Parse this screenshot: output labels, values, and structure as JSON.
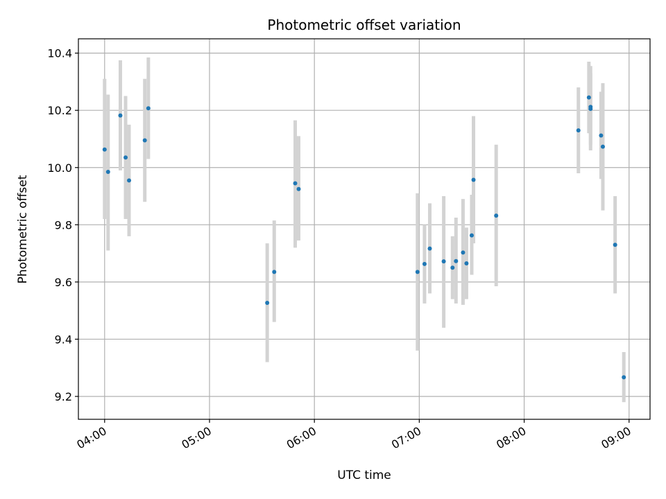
{
  "chart_data": {
    "type": "scatter",
    "title": "Photometric offset variation",
    "xlabel": "UTC time",
    "ylabel": "Photometric offset",
    "x_unit": "hour of day (UTC)",
    "xlim": [
      3.75,
      9.2
    ],
    "ylim": [
      9.12,
      10.45
    ],
    "xticks": [
      {
        "value": 4,
        "label": "04:00"
      },
      {
        "value": 5,
        "label": "05:00"
      },
      {
        "value": 6,
        "label": "06:00"
      },
      {
        "value": 7,
        "label": "07:00"
      },
      {
        "value": 8,
        "label": "08:00"
      },
      {
        "value": 9,
        "label": "09:00"
      }
    ],
    "yticks": [
      {
        "value": 9.2,
        "label": "9.2"
      },
      {
        "value": 9.4,
        "label": "9.4"
      },
      {
        "value": 9.6,
        "label": "9.6"
      },
      {
        "value": 9.8,
        "label": "9.8"
      },
      {
        "value": 10.0,
        "label": "10.0"
      },
      {
        "value": 10.2,
        "label": "10.2"
      },
      {
        "value": 10.4,
        "label": "10.4"
      }
    ],
    "grid": true,
    "colors": {
      "marker": "#1f77b4",
      "errorbar": "#d3d3d3",
      "grid": "#b0b0b0"
    },
    "points": [
      {
        "x": 4.0,
        "y": 10.063,
        "ylow": 9.82,
        "yhigh": 10.31
      },
      {
        "x": 4.033,
        "y": 9.985,
        "ylow": 9.71,
        "yhigh": 10.255
      },
      {
        "x": 4.15,
        "y": 10.182,
        "ylow": 9.99,
        "yhigh": 10.375
      },
      {
        "x": 4.2,
        "y": 10.035,
        "ylow": 9.82,
        "yhigh": 10.25
      },
      {
        "x": 4.233,
        "y": 9.955,
        "ylow": 9.76,
        "yhigh": 10.15
      },
      {
        "x": 4.383,
        "y": 10.095,
        "ylow": 9.88,
        "yhigh": 10.31
      },
      {
        "x": 4.417,
        "y": 10.207,
        "ylow": 10.03,
        "yhigh": 10.385
      },
      {
        "x": 5.55,
        "y": 9.527,
        "ylow": 9.32,
        "yhigh": 9.735
      },
      {
        "x": 5.617,
        "y": 9.635,
        "ylow": 9.46,
        "yhigh": 9.815
      },
      {
        "x": 5.817,
        "y": 9.945,
        "ylow": 9.72,
        "yhigh": 10.165
      },
      {
        "x": 5.85,
        "y": 9.925,
        "ylow": 9.745,
        "yhigh": 10.11
      },
      {
        "x": 6.983,
        "y": 9.635,
        "ylow": 9.36,
        "yhigh": 9.91
      },
      {
        "x": 7.05,
        "y": 9.663,
        "ylow": 9.525,
        "yhigh": 9.8
      },
      {
        "x": 7.1,
        "y": 9.717,
        "ylow": 9.56,
        "yhigh": 9.875
      },
      {
        "x": 7.233,
        "y": 9.672,
        "ylow": 9.44,
        "yhigh": 9.9
      },
      {
        "x": 7.317,
        "y": 9.65,
        "ylow": 9.54,
        "yhigh": 9.76
      },
      {
        "x": 7.35,
        "y": 9.673,
        "ylow": 9.525,
        "yhigh": 9.825
      },
      {
        "x": 7.417,
        "y": 9.703,
        "ylow": 9.52,
        "yhigh": 9.89
      },
      {
        "x": 7.45,
        "y": 9.665,
        "ylow": 9.54,
        "yhigh": 9.79
      },
      {
        "x": 7.5,
        "y": 9.763,
        "ylow": 9.625,
        "yhigh": 9.905
      },
      {
        "x": 7.517,
        "y": 9.957,
        "ylow": 9.735,
        "yhigh": 10.18
      },
      {
        "x": 7.733,
        "y": 9.832,
        "ylow": 9.585,
        "yhigh": 10.08
      },
      {
        "x": 8.517,
        "y": 10.13,
        "ylow": 9.98,
        "yhigh": 10.28
      },
      {
        "x": 8.617,
        "y": 10.245,
        "ylow": 10.12,
        "yhigh": 10.37
      },
      {
        "x": 8.633,
        "y": 10.212,
        "ylow": 10.06,
        "yhigh": 10.355
      },
      {
        "x": 8.633,
        "y": 10.205,
        "ylow": 10.08,
        "yhigh": 10.33
      },
      {
        "x": 8.733,
        "y": 10.112,
        "ylow": 9.96,
        "yhigh": 10.265
      },
      {
        "x": 8.75,
        "y": 10.073,
        "ylow": 9.85,
        "yhigh": 10.295
      },
      {
        "x": 8.867,
        "y": 9.73,
        "ylow": 9.56,
        "yhigh": 9.9
      },
      {
        "x": 8.95,
        "y": 9.267,
        "ylow": 9.18,
        "yhigh": 9.355
      }
    ]
  }
}
